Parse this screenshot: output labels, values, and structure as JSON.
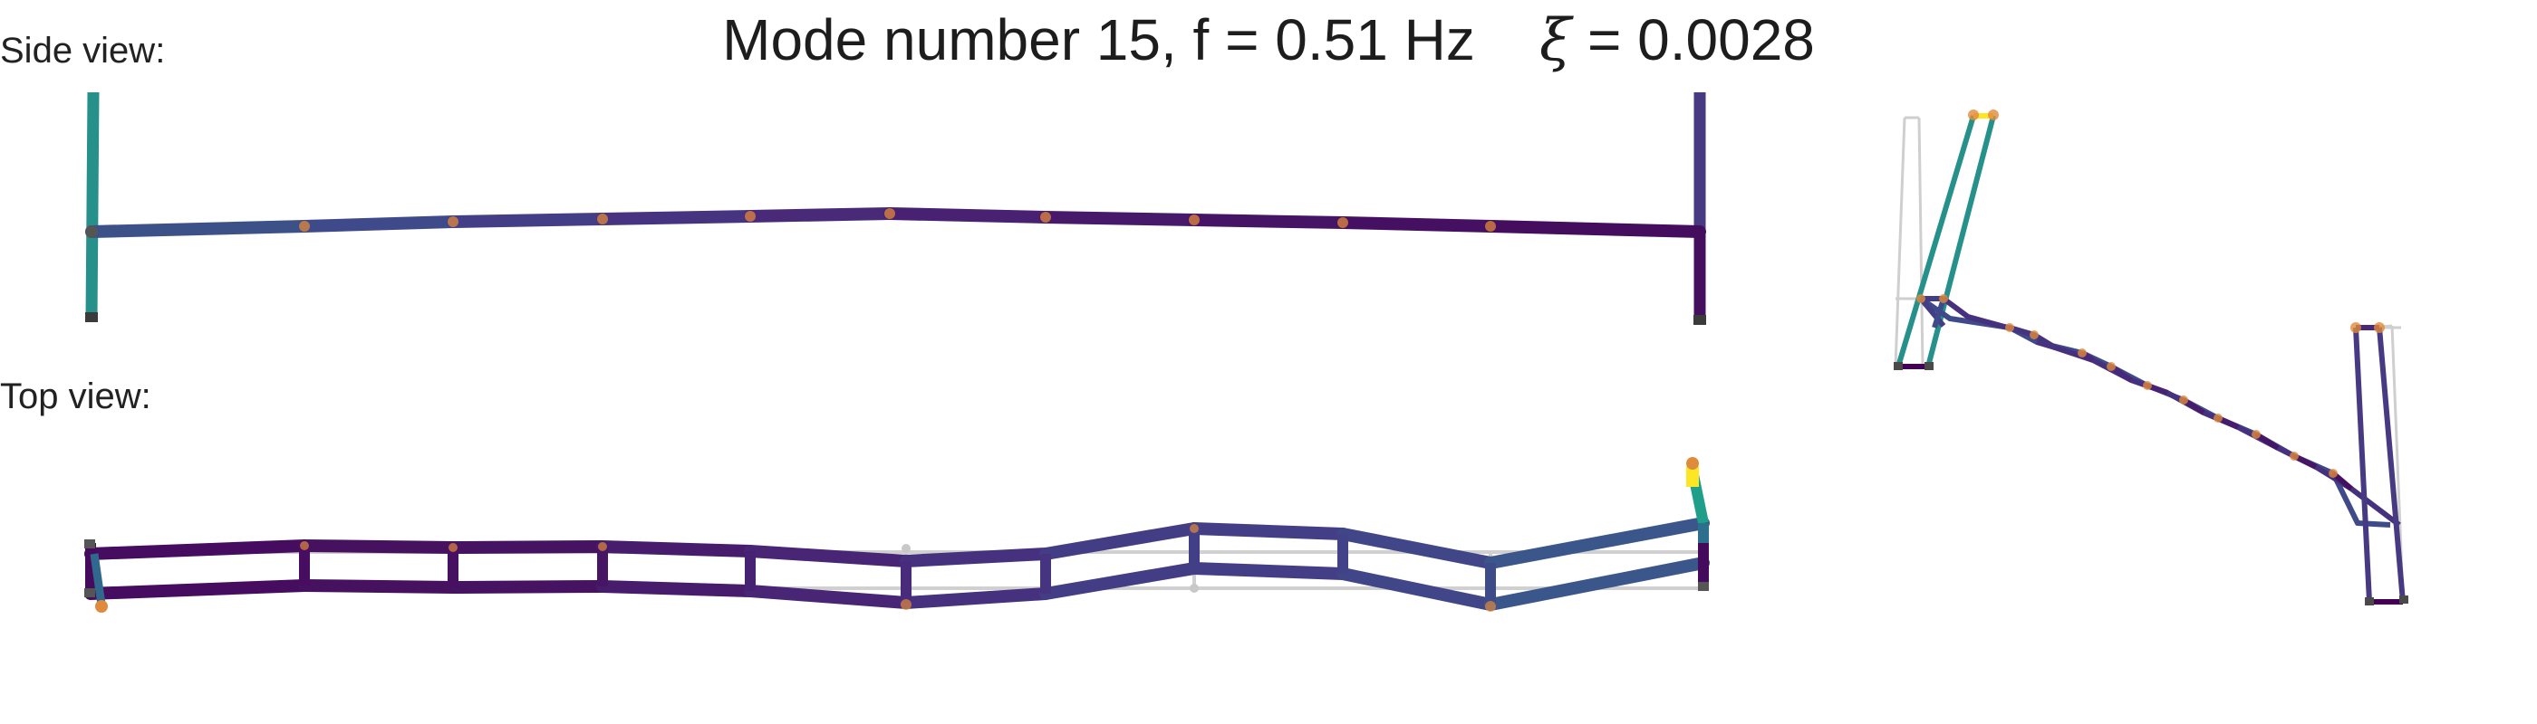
{
  "title": {
    "prefix": "Mode number 15, f = 0.51 Hz",
    "damping_symbol": "ξ",
    "damping_text": " = 0.0028"
  },
  "views": {
    "side_label": "Side view:",
    "top_label": "Top view:"
  },
  "mode": {
    "number": 15,
    "frequency_hz": 0.51,
    "damping_ratio": 0.0028
  },
  "colors": {
    "undeformed_line": "#d0d0d0",
    "node_marker": "#e08a3c",
    "support_marker": "#3b3b3b",
    "colormap": "viridis",
    "palette": [
      "#440154",
      "#482878",
      "#3e4989",
      "#31688e",
      "#26828e",
      "#1f9e89",
      "#fde725"
    ]
  }
}
